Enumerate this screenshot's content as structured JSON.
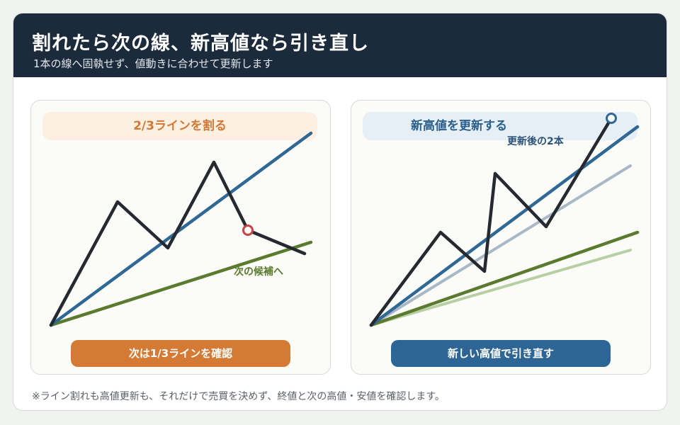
{
  "header": {
    "title": "割れたら次の線、新高値なら引き直し",
    "subtitle": "1本の線へ固執せず、値動きに合わせて更新します"
  },
  "left_panel": {
    "banner": "2/3ラインを割る",
    "line_label": "次の候補へ",
    "button": "次は1/3ラインを確認"
  },
  "right_panel": {
    "banner": "新高値を更新する",
    "line_label": "更新後の2本",
    "button": "新しい高値で引き直す"
  },
  "footnote": "※ライン割れも高値更新も、それだけで売買を決めず、終値と次の高値・安値を確認します。",
  "colors": {
    "price": "#262a30",
    "blue_line": "#2f6894",
    "green_line": "#5a7a2e",
    "faded_blue": "#a9b8c6",
    "faded_green": "#b8cfa4",
    "orange": "#d47a35",
    "marker_red": "#c9434a",
    "marker_blue": "#2f6894"
  }
}
